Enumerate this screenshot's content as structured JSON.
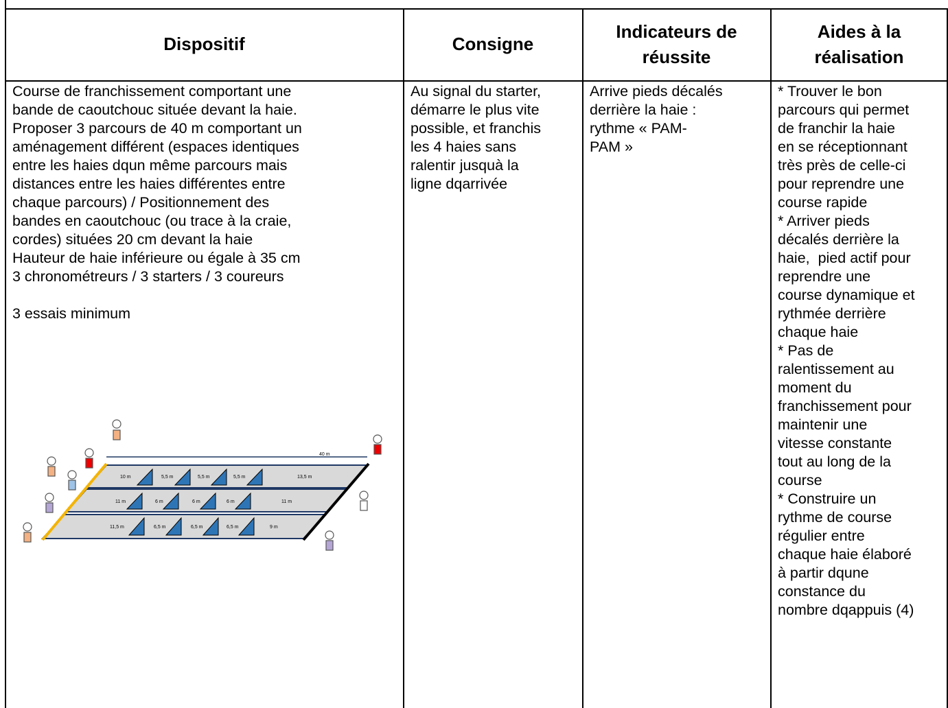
{
  "table": {
    "headers": [
      [
        "Dispositif"
      ],
      [
        "Consigne"
      ],
      [
        "Indicateurs de",
        "réussite"
      ],
      [
        "Aides à la",
        "réalisation"
      ]
    ],
    "cells": [
      [
        [
          "Course de franchissement comportant une",
          "bande de caoutchouc située devant la haie.",
          "Proposer 3 parcours de 40 m comportant un",
          "aménagement différent (espaces identiques",
          "entre les haies dqun même parcours mais",
          "distances entre les haies différentes entre",
          "chaque parcours) / Positionnement des",
          "bandes en caoutchouc (ou trace à la craie,",
          "cordes) situées 20 cm devant la haie",
          "Hauteur de haie inférieure ou égale à 35 cm",
          "3 chronométreurs / 3 starters / 3 coureurs"
        ],
        [
          "3 essais minimum"
        ]
      ],
      [
        [
          "Au signal du starter,",
          "démarre le plus vite",
          "possible, et franchis",
          "les 4 haies sans",
          "ralentir jusquà la",
          "ligne dqarrivée"
        ]
      ],
      [
        [
          "Arrive pieds décalés",
          "derrière la haie :",
          "rythme « PAM-",
          "PAM »"
        ]
      ],
      [
        [
          "* Trouver le bon",
          "parcours qui permet",
          "de franchir la haie",
          "en se réceptionnant",
          "très près de celle-ci",
          "pour reprendre une",
          "course rapide",
          "* Arriver pieds",
          "décalés derrière la",
          "haie,  pied actif pour",
          "reprendre une",
          "course dynamique et",
          "rythmée derrière",
          "chaque haie",
          "* Pas de",
          "ralentissement au",
          "moment du",
          "franchissement pour",
          "maintenir une",
          "vitesse constante",
          "tout au long de la",
          "course",
          "* Construire un",
          "rythme de course",
          "régulier entre",
          "chaque haie élaboré",
          "à partir dqune",
          "constance du",
          "nombre dqappuis (4)"
        ]
      ]
    ]
  },
  "figure": {
    "distance": "40 m",
    "lanes": [
      [
        "10 m",
        "5,5 m",
        "5,5 m",
        "5,5 m",
        "13,5 m"
      ],
      [
        "11 m",
        "6 m",
        "6 m",
        "6 m",
        "11 m"
      ],
      [
        "11,5 m",
        "6,5 m",
        "6,5 m",
        "6,5 m",
        "9 m"
      ]
    ]
  }
}
